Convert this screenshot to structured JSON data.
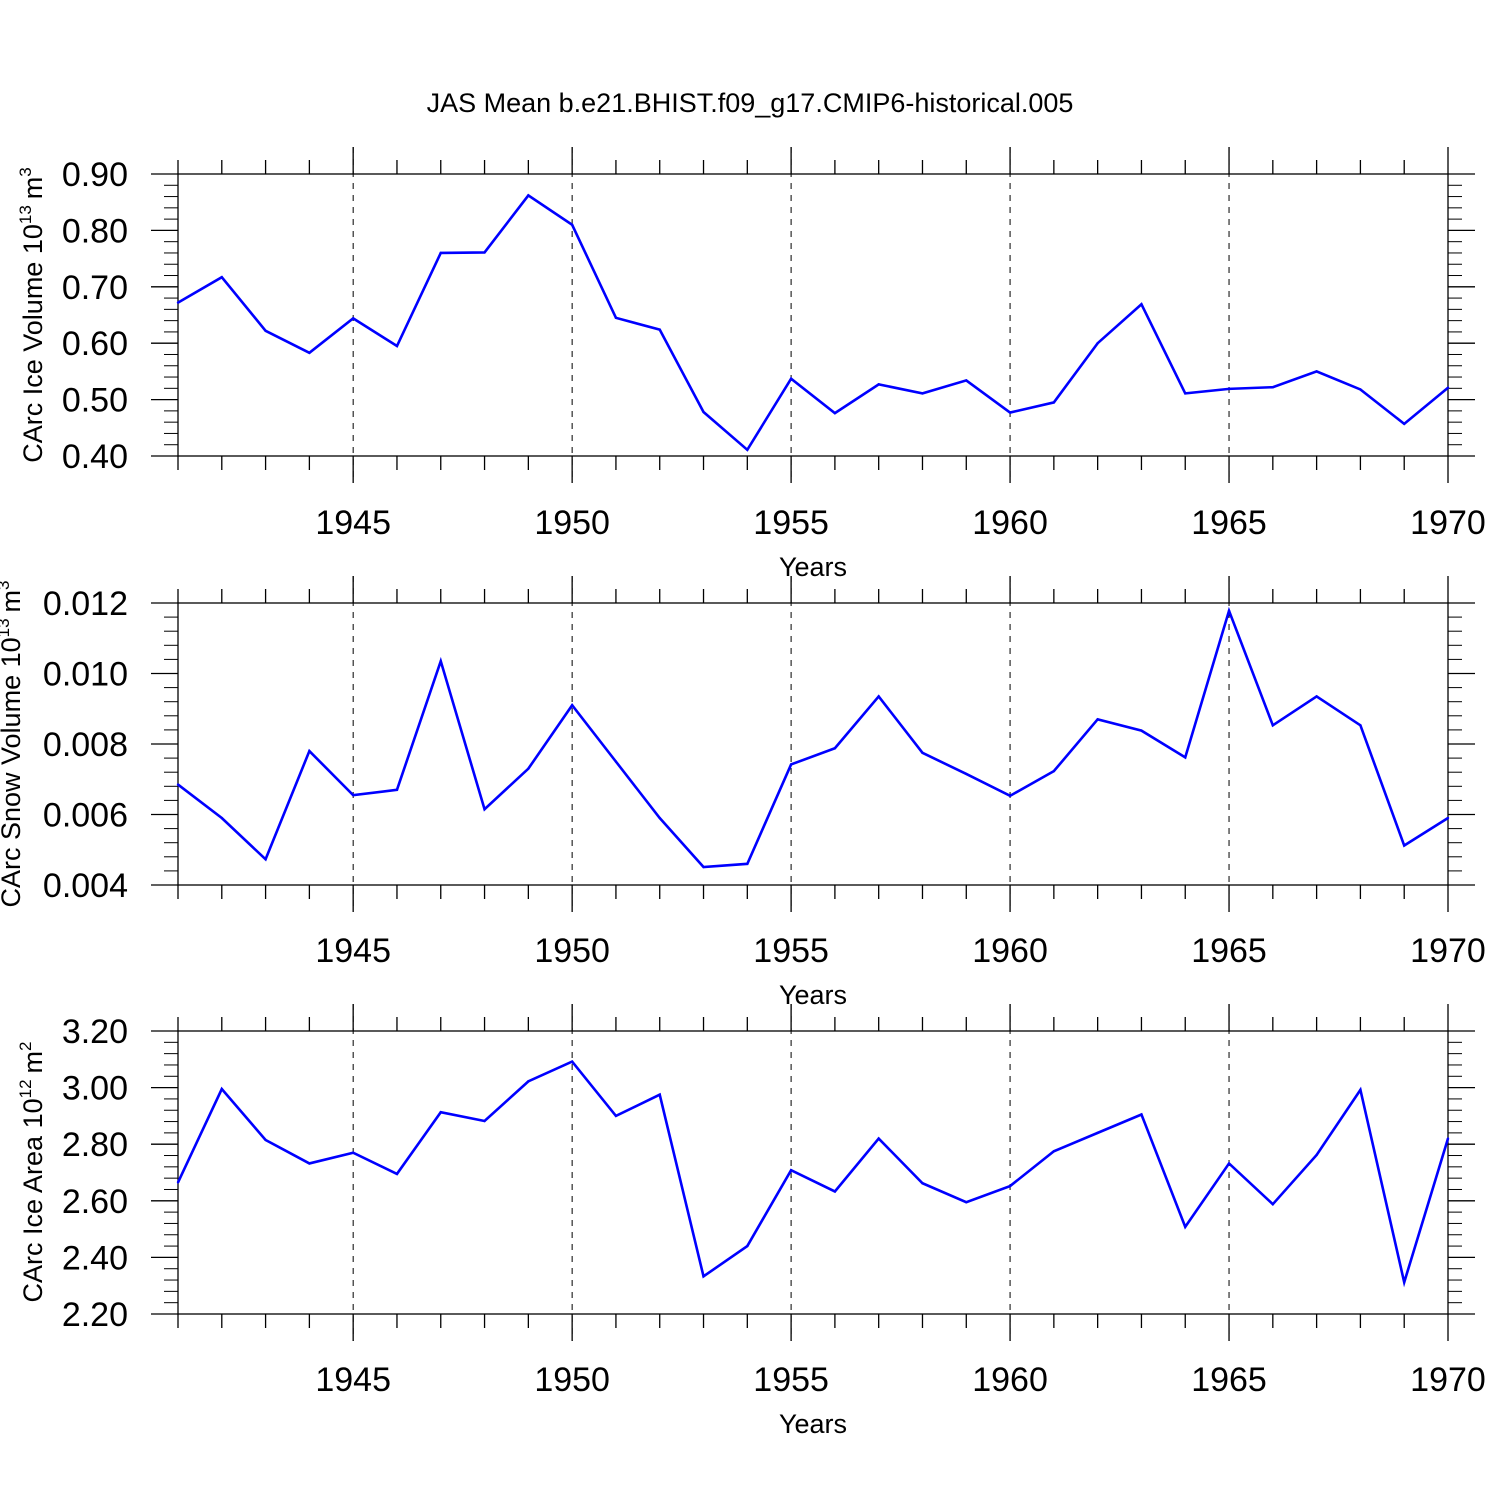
{
  "figure": {
    "title": "JAS Mean b.e21.BHIST.f09_g17.CMIP6-historical.005",
    "line_color": "#0000ff",
    "grid_color": "#000000",
    "background": "#ffffff"
  },
  "chart_data": [
    {
      "type": "line",
      "ylabel_main": "CArc Ice Volume 10",
      "ylabel_exp": "13",
      "ylabel_unit": "m",
      "ylabel_unit_exp": "3",
      "xlabel": "Years",
      "xlim": [
        1941,
        1970
      ],
      "ylim": [
        0.4,
        0.9
      ],
      "yticks": [
        0.4,
        0.5,
        0.6,
        0.7,
        0.8,
        0.9
      ],
      "ytick_labels": [
        "0.40",
        "0.50",
        "0.60",
        "0.70",
        "0.80",
        "0.90"
      ],
      "xticks": [
        1945,
        1950,
        1955,
        1960,
        1965,
        1970
      ],
      "xtick_labels": [
        "1945",
        "1950",
        "1955",
        "1960",
        "1965",
        "1970"
      ],
      "x": [
        1941,
        1942,
        1943,
        1944,
        1945,
        1946,
        1947,
        1948,
        1949,
        1950,
        1951,
        1952,
        1953,
        1954,
        1955,
        1956,
        1957,
        1958,
        1959,
        1960,
        1961,
        1962,
        1963,
        1964,
        1965,
        1966,
        1967,
        1968,
        1969,
        1970
      ],
      "y": [
        0.672,
        0.717,
        0.622,
        0.583,
        0.644,
        0.595,
        0.76,
        0.761,
        0.862,
        0.81,
        0.645,
        0.624,
        0.478,
        0.411,
        0.537,
        0.476,
        0.527,
        0.511,
        0.534,
        0.477,
        0.495,
        0.6,
        0.669,
        0.511,
        0.519,
        0.522,
        0.55,
        0.518,
        0.457,
        0.521
      ]
    },
    {
      "type": "line",
      "ylabel_main": "CArc Snow Volume 10",
      "ylabel_exp": "13",
      "ylabel_unit": "m",
      "ylabel_unit_exp": "3",
      "xlabel": "Years",
      "xlim": [
        1941,
        1970
      ],
      "ylim": [
        0.004,
        0.012
      ],
      "yticks": [
        0.004,
        0.006,
        0.008,
        0.01,
        0.012
      ],
      "ytick_labels": [
        "0.004",
        "0.006",
        "0.008",
        "0.010",
        "0.012"
      ],
      "xticks": [
        1945,
        1950,
        1955,
        1960,
        1965,
        1970
      ],
      "xtick_labels": [
        "1945",
        "1950",
        "1955",
        "1960",
        "1965",
        "1970"
      ],
      "x": [
        1941,
        1942,
        1943,
        1944,
        1945,
        1946,
        1947,
        1948,
        1949,
        1950,
        1951,
        1952,
        1953,
        1954,
        1955,
        1956,
        1957,
        1958,
        1959,
        1960,
        1961,
        1962,
        1963,
        1964,
        1965,
        1966,
        1967,
        1968,
        1969,
        1970
      ],
      "y": [
        0.00685,
        0.0059,
        0.00473,
        0.0078,
        0.00655,
        0.0067,
        0.01035,
        0.00615,
        0.0073,
        0.0091,
        0.0075,
        0.0059,
        0.00451,
        0.0046,
        0.00742,
        0.00788,
        0.00935,
        0.00775,
        0.00715,
        0.00653,
        0.00723,
        0.0087,
        0.00838,
        0.00762,
        0.01178,
        0.00853,
        0.00935,
        0.00853,
        0.00512,
        0.0059
      ]
    },
    {
      "type": "line",
      "ylabel_main": "CArc Ice Area 10",
      "ylabel_exp": "12",
      "ylabel_unit": "m",
      "ylabel_unit_exp": "2",
      "xlabel": "Years",
      "xlim": [
        1941,
        1970
      ],
      "ylim": [
        2.2,
        3.2
      ],
      "yticks": [
        2.2,
        2.4,
        2.6,
        2.8,
        3.0,
        3.2
      ],
      "ytick_labels": [
        "2.20",
        "2.40",
        "2.60",
        "2.80",
        "3.00",
        "3.20"
      ],
      "xticks": [
        1945,
        1950,
        1955,
        1960,
        1965,
        1970
      ],
      "xtick_labels": [
        "1945",
        "1950",
        "1955",
        "1960",
        "1965",
        "1970"
      ],
      "x": [
        1941,
        1942,
        1943,
        1944,
        1945,
        1946,
        1947,
        1948,
        1949,
        1950,
        1951,
        1952,
        1953,
        1954,
        1955,
        1956,
        1957,
        1958,
        1959,
        1960,
        1961,
        1962,
        1963,
        1964,
        1965,
        1966,
        1967,
        1968,
        1969,
        1970
      ],
      "y": [
        2.665,
        2.995,
        2.815,
        2.732,
        2.77,
        2.695,
        2.913,
        2.882,
        3.022,
        3.092,
        2.9,
        2.975,
        2.333,
        2.44,
        2.708,
        2.633,
        2.82,
        2.662,
        2.595,
        2.652,
        2.775,
        2.84,
        2.905,
        2.508,
        2.732,
        2.588,
        2.762,
        2.992,
        2.312,
        2.82
      ]
    }
  ]
}
